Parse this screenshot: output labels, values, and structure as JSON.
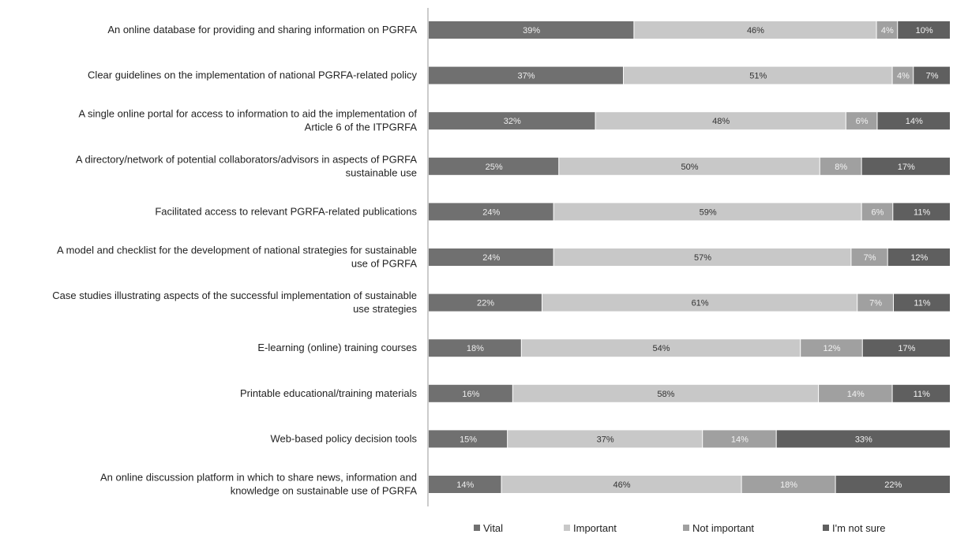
{
  "chart_data": {
    "type": "bar",
    "orientation": "horizontal",
    "stacked": true,
    "title": "",
    "xlabel": "",
    "ylabel": "",
    "grid": false,
    "legend_position": "bottom",
    "categories": [
      [
        "An online database for providing and sharing information on PGRFA"
      ],
      [
        "Clear guidelines on the implementation of national PGRFA-related policy"
      ],
      [
        "A single online portal for access to information to aid the implementation of",
        "Article 6 of the ITPGRFA"
      ],
      [
        "A directory/network of potential collaborators/advisors in aspects of PGRFA",
        "sustainable use"
      ],
      [
        "Facilitated access to relevant PGRFA-related publications"
      ],
      [
        "A model and checklist for the development of national strategies for sustainable",
        "use of PGRFA"
      ],
      [
        "Case studies illustrating aspects of the successful implementation of sustainable",
        "use strategies"
      ],
      [
        "E-learning (online) training courses"
      ],
      [
        "Printable educational/training materials"
      ],
      [
        "Web-based policy decision tools"
      ],
      [
        "An online discussion platform in which to share news, information and",
        "knowledge on sustainable use of PGRFA"
      ]
    ],
    "series": [
      {
        "name": "Vital",
        "color": "#707070",
        "label_color": "#eeeeee",
        "values": [
          39,
          37,
          32,
          25,
          24,
          24,
          22,
          18,
          16,
          15,
          14
        ]
      },
      {
        "name": "Important",
        "color": "#c8c8c8",
        "label_color": "#333333",
        "values": [
          46,
          51,
          48,
          50,
          59,
          57,
          61,
          54,
          58,
          37,
          46
        ]
      },
      {
        "name": "Not important",
        "color": "#a0a0a0",
        "label_color": "#f2f2f2",
        "values": [
          4,
          4,
          6,
          8,
          6,
          7,
          7,
          12,
          14,
          14,
          18
        ]
      },
      {
        "name": "I'm not sure",
        "color": "#5f5f5f",
        "label_color": "#f2f2f2",
        "values": [
          10,
          7,
          14,
          17,
          11,
          12,
          11,
          17,
          11,
          33,
          22
        ]
      }
    ],
    "value_suffix": "%"
  }
}
